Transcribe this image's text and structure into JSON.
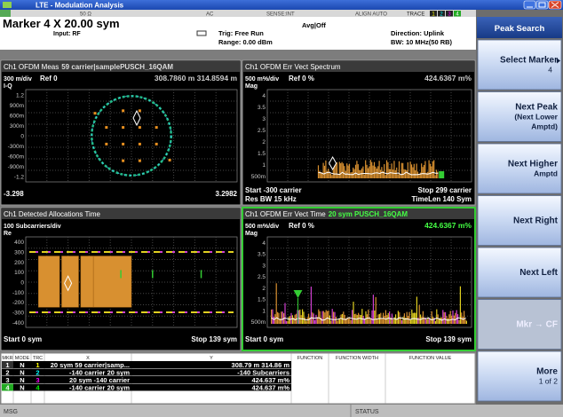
{
  "window": {
    "title": "LTE - Modulation Analysis"
  },
  "status_line": {
    "impedance": "50 Ω",
    "coupling": "AC",
    "sense": "SENSE:INT",
    "align": "ALIGN AUTO",
    "trace_label": "TRACE",
    "trace_numbers": [
      "1",
      "2",
      "3",
      "4"
    ]
  },
  "header": {
    "marker": "Marker 4 X 20.00 sym",
    "input": "Input: RF",
    "trigger": "Trig: Free Run",
    "range": "Range: 0.00 dBm",
    "avg": "Avg|Off",
    "direction": "Direction: Uplink",
    "bw": "BW: 10 MHz(50 RB)"
  },
  "panels": [
    {
      "title": "Ch1 OFDM Meas",
      "title_extra": "59 carrier|samplePUSCH_16QAM",
      "scale": "300 m/div",
      "ref": "Ref 0",
      "readout": "308.7860 m 314.8594 m",
      "axis": "I-Q",
      "yticks": [
        "1.2",
        "900m",
        "600m",
        "300m",
        "0",
        "-300m",
        "-600m",
        "-900m",
        "-1.2"
      ],
      "bottom_left": "-3.298",
      "bottom_right": "3.2982"
    },
    {
      "title": "Ch1 OFDM Err Vect Spectrum",
      "scale": "500 m%/div",
      "ref": "Ref 0 %",
      "readout": "424.6367 m%",
      "axis": "Mag",
      "yticks": [
        "4",
        "3.5",
        "3",
        "2.5",
        "2",
        "1.5",
        "1",
        "500m"
      ],
      "bottom_left": "Start -300  carrier",
      "bottom_right": "Stop 299  carrier",
      "bottom_left2": "Res BW 15 kHz",
      "bottom_right2": "TimeLen 140  Sym"
    },
    {
      "title": "Ch1 Detected Allocations Time",
      "scale": "100  Subcarriers/div",
      "axis": "Re",
      "yticks": [
        "400",
        "300",
        "200",
        "100",
        "0",
        "-100",
        "-200",
        "-300",
        "-400"
      ],
      "bottom_left": "Start 0  sym",
      "bottom_right": "Stop 139  sym"
    },
    {
      "title": "Ch1 OFDM Err Vect Time",
      "title_extra": "20 sym PUSCH_16QAM",
      "scale": "500 m%/div",
      "ref": "Ref 0 %",
      "readout": "424.6367 m%",
      "axis": "Mag",
      "yticks": [
        "4",
        "3.5",
        "3",
        "2.5",
        "2",
        "1.5",
        "1",
        "500m"
      ],
      "bottom_left": "Start 0  sym",
      "bottom_right": "Stop 139  sym"
    }
  ],
  "softkeys": {
    "menu_title": "Peak Search",
    "keys": [
      {
        "lines": [
          "Select Marker"
        ],
        "value": "4"
      },
      {
        "lines": [
          "Next Peak",
          "(Next Lower",
          "Amptd)"
        ]
      },
      {
        "lines": [
          "Next Higher",
          "Amptd"
        ]
      },
      {
        "lines": [
          "Next Right"
        ]
      },
      {
        "lines": [
          "Next Left"
        ]
      },
      {
        "lines": [
          "Mkr → CF"
        ],
        "disabled": true
      },
      {
        "lines": [
          "More",
          "1 of 2"
        ]
      }
    ]
  },
  "marker_table": {
    "headers": [
      "MKR",
      "MODE",
      "TRC",
      "X",
      "Y",
      "FUNCTION",
      "FUNCTION WIDTH",
      "FUNCTION VALUE"
    ],
    "rows": [
      [
        "1",
        "N",
        "1",
        "20 sym  59 carrier|samp...",
        "308.79 m 314.86 m"
      ],
      [
        "2",
        "N",
        "2",
        "-140 carrier  20 sym",
        "-140 Subcarriers"
      ],
      [
        "3",
        "N",
        "3",
        "20 sym  -140 carrier",
        "424.637 m%"
      ],
      [
        "4",
        "N",
        "4",
        "-140 carrier  20 sym",
        "424.637 m%"
      ]
    ]
  },
  "status_bar": {
    "msg": "MSG",
    "status": "STATUS"
  }
}
